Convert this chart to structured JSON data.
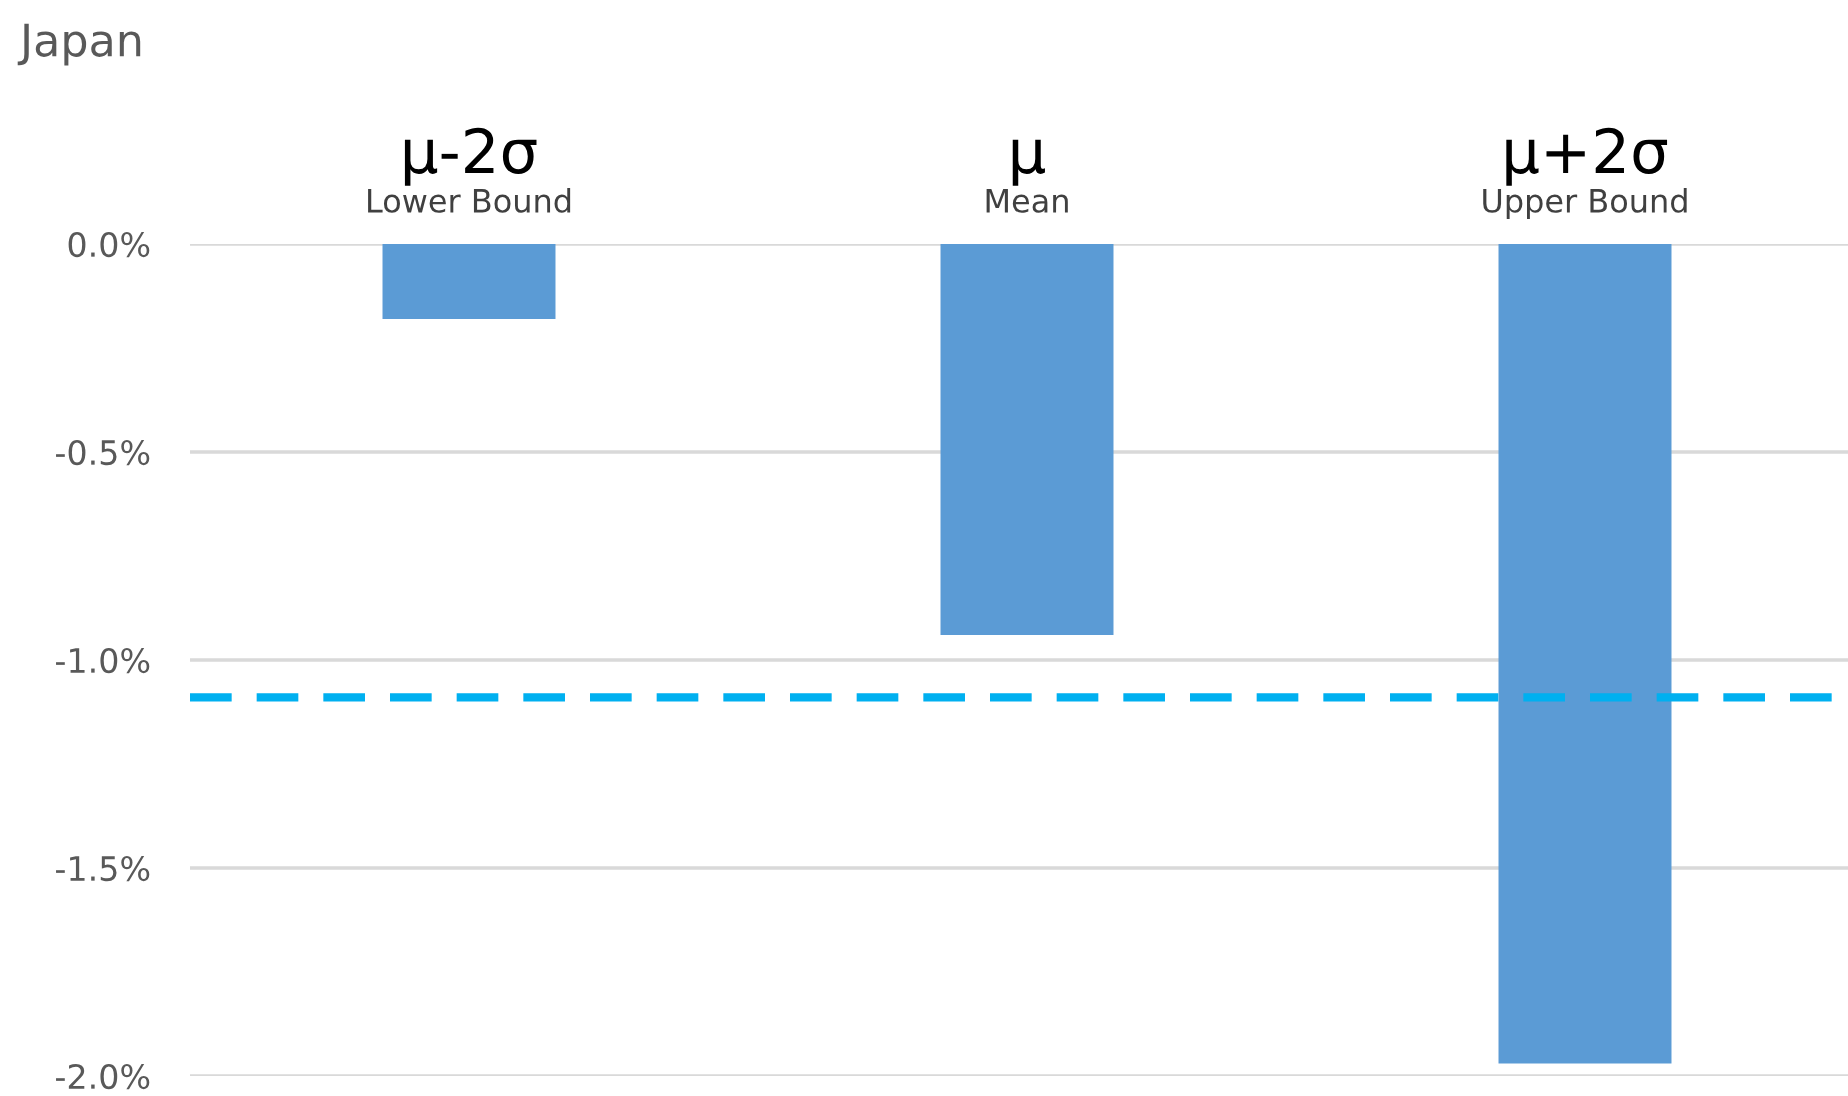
{
  "chart_data": {
    "type": "bar",
    "title": "Japan",
    "categories": [
      "μ-2σ\nLower Bound",
      "μ\nMean",
      "μ+2σ\nUpper Bound"
    ],
    "values": [
      -0.18,
      -0.94,
      -1.97
    ],
    "color": "#5b9bd5",
    "ylim": [
      -2.0,
      0.0
    ],
    "yticks": [
      {
        "value": 0,
        "label": "0.0%"
      },
      {
        "value": -0.5,
        "label": "-0.5%"
      },
      {
        "value": -1.0,
        "label": "-1.0%"
      },
      {
        "value": -1.5,
        "label": "-1.5%"
      },
      {
        "value": -2.0,
        "label": "-2.0%"
      }
    ],
    "ref_lines": [
      {
        "axis": "y",
        "value": -1.09,
        "label": null,
        "color": "#00b0f0",
        "line_style": "dashed"
      }
    ],
    "grid": "y"
  }
}
